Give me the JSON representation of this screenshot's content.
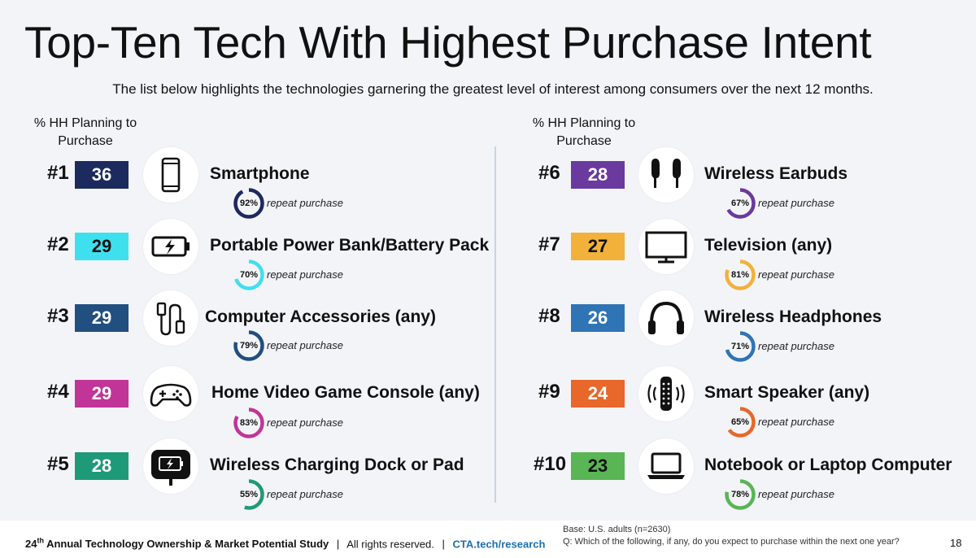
{
  "title": "Top-Ten Tech With Highest Purchase Intent",
  "subtitle": "The list below highlights the technologies garnering the greatest level of interest among consumers over the next 12 months.",
  "column_header_line1": "% HH Planning to",
  "column_header_line2": "Purchase",
  "repeat_label": "repeat purchase",
  "items": [
    {
      "rank": "#1",
      "value": "36",
      "name": "Smartphone",
      "repeat": "92%",
      "repeat_value": 92,
      "color": "#1c2a5e",
      "text_color": "#ffffff",
      "icon": "smartphone-icon"
    },
    {
      "rank": "#2",
      "value": "29",
      "name": "Portable Power Bank/Battery Pack",
      "repeat": "70%",
      "repeat_value": 70,
      "color": "#3fe0ee",
      "text_color": "#111111",
      "icon": "battery-icon"
    },
    {
      "rank": "#3",
      "value": "29",
      "name": "Computer Accessories (any)",
      "repeat": "79%",
      "repeat_value": 79,
      "color": "#204f80",
      "text_color": "#ffffff",
      "icon": "cable-icon"
    },
    {
      "rank": "#4",
      "value": "29",
      "name": "Home Video Game Console (any)",
      "repeat": "83%",
      "repeat_value": 83,
      "color": "#c03597",
      "text_color": "#ffffff",
      "icon": "gamepad-icon"
    },
    {
      "rank": "#5",
      "value": "28",
      "name": "Wireless Charging Dock or Pad",
      "repeat": "55%",
      "repeat_value": 55,
      "color": "#1e9a78",
      "text_color": "#ffffff",
      "icon": "charging-pad-icon"
    },
    {
      "rank": "#6",
      "value": "28",
      "name": "Wireless Earbuds",
      "repeat": "67%",
      "repeat_value": 67,
      "color": "#6a3a9e",
      "text_color": "#ffffff",
      "icon": "earbuds-icon"
    },
    {
      "rank": "#7",
      "value": "27",
      "name": "Television (any)",
      "repeat": "81%",
      "repeat_value": 81,
      "color": "#f2b13a",
      "text_color": "#111111",
      "icon": "television-icon"
    },
    {
      "rank": "#8",
      "value": "26",
      "name": "Wireless Headphones",
      "repeat": "71%",
      "repeat_value": 71,
      "color": "#2f74b5",
      "text_color": "#ffffff",
      "icon": "headphones-icon"
    },
    {
      "rank": "#9",
      "value": "24",
      "name": "Smart Speaker (any)",
      "repeat": "65%",
      "repeat_value": 65,
      "color": "#e8672a",
      "text_color": "#ffffff",
      "icon": "smart-speaker-icon"
    },
    {
      "rank": "#10",
      "value": "23",
      "name": "Notebook or Laptop Computer",
      "repeat": "78%",
      "repeat_value": 78,
      "color": "#5ab555",
      "text_color": "#111111",
      "icon": "laptop-icon"
    }
  ],
  "footer": {
    "study_prefix": "24",
    "study_sup": "th",
    "study_name": " Annual Technology Ownership & Market Potential Study",
    "sep1": "|",
    "rights": "All rights reserved.",
    "sep2": "|",
    "link": "CTA.tech/research",
    "base": "Base: U.S. adults (n=2630)",
    "question": "Q: Which of the following, if any, do you expect to purchase within the next one year?",
    "page": "18"
  }
}
